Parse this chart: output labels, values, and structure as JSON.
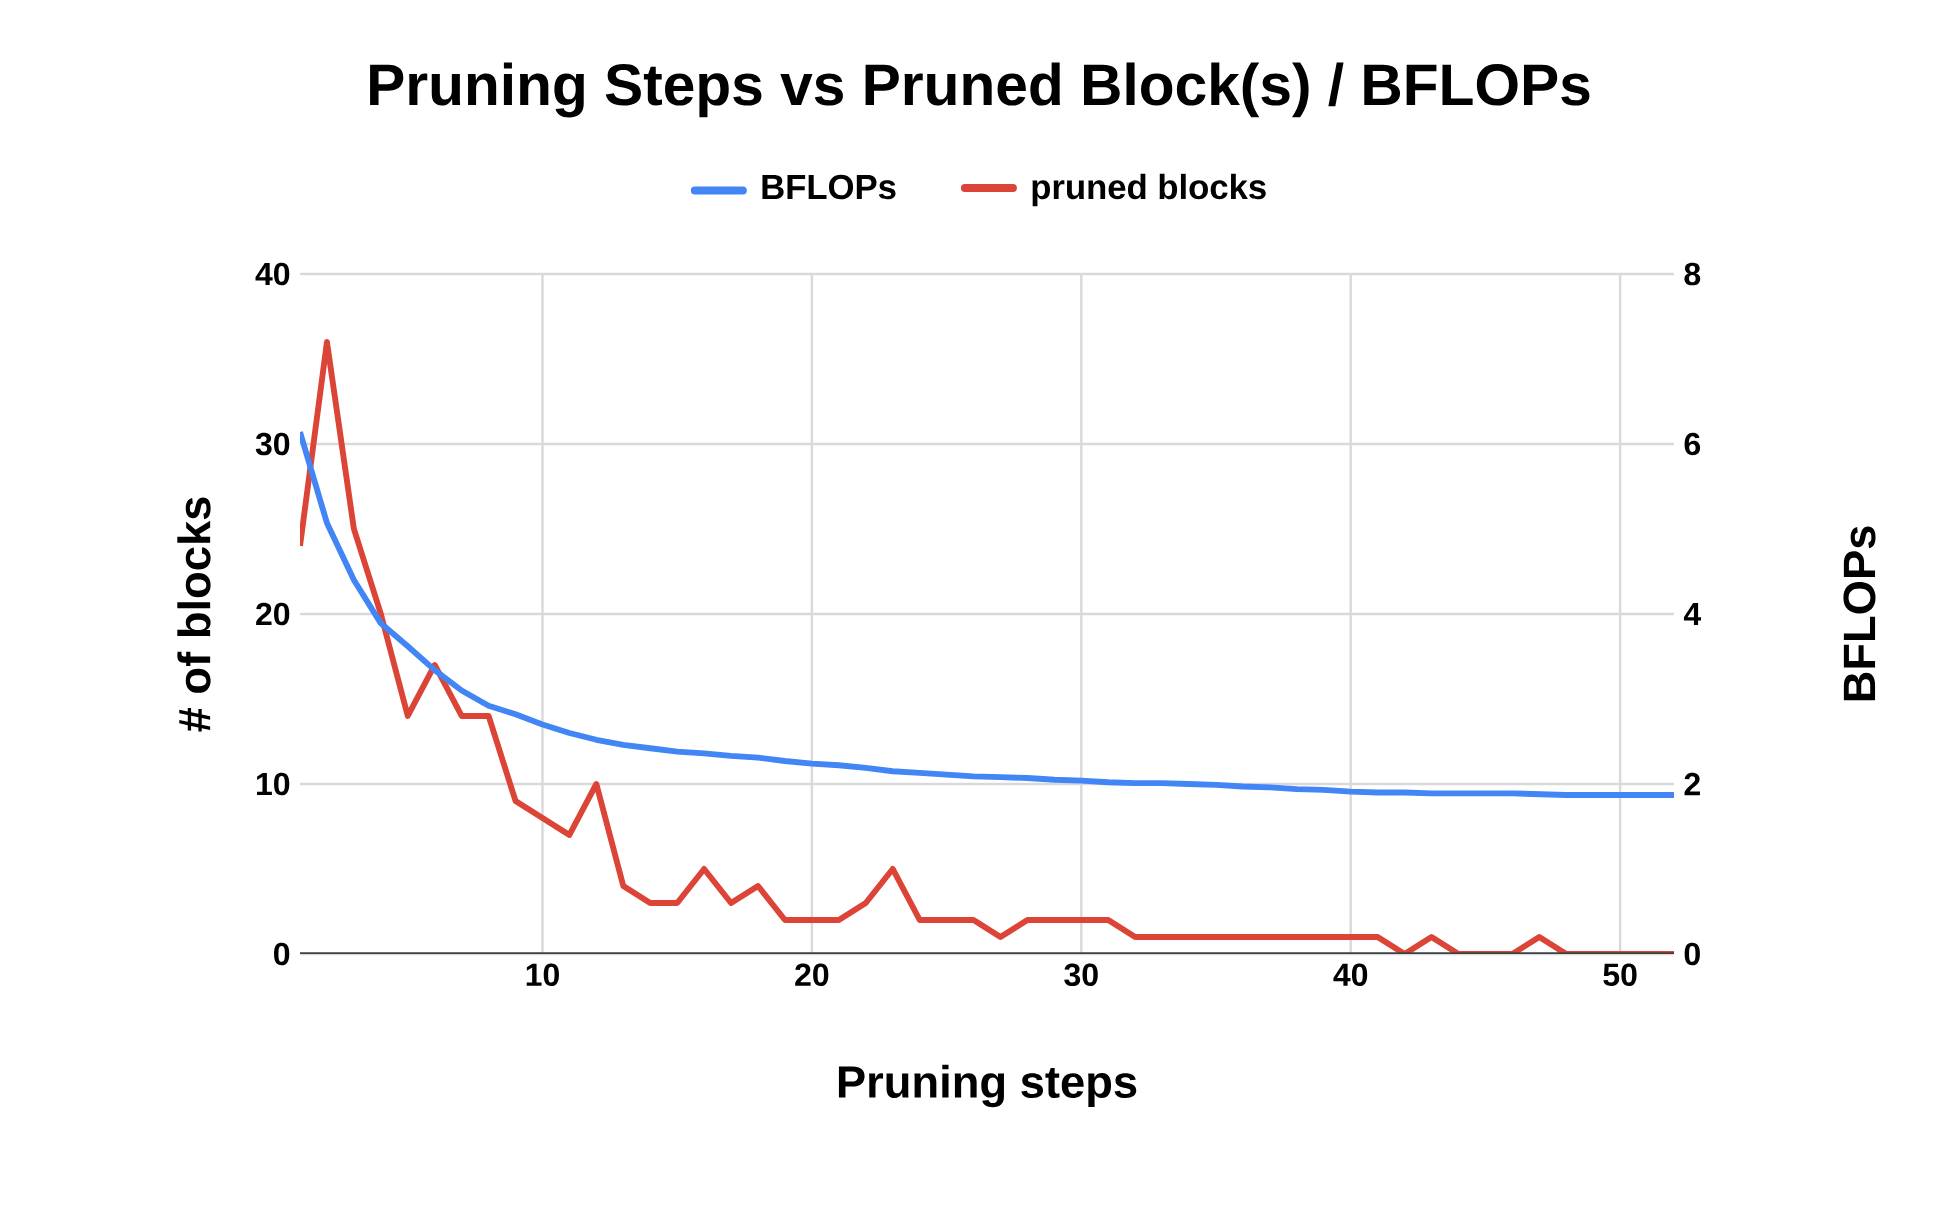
{
  "chart_data": {
    "type": "line",
    "title": "Pruning Steps vs Pruned Block(s) / BFLOPs",
    "xlabel": "Pruning steps",
    "ylabel": "# of blocks",
    "y2label": "BFLOPs",
    "x": [
      1,
      2,
      3,
      4,
      5,
      6,
      7,
      8,
      9,
      10,
      11,
      12,
      13,
      14,
      15,
      16,
      17,
      18,
      19,
      20,
      21,
      22,
      23,
      24,
      25,
      26,
      27,
      28,
      29,
      30,
      31,
      32,
      33,
      34,
      35,
      36,
      37,
      38,
      39,
      40,
      41,
      42,
      43,
      44,
      45,
      46,
      47,
      48,
      49,
      50,
      51,
      52
    ],
    "series": [
      {
        "name": "BFLOPs",
        "color": "#4285f4",
        "axis": "y2",
        "values": [
          6.14,
          5.07,
          4.4,
          3.89,
          3.62,
          3.34,
          3.1,
          2.92,
          2.82,
          2.7,
          2.6,
          2.52,
          2.46,
          2.42,
          2.38,
          2.36,
          2.33,
          2.31,
          2.27,
          2.24,
          2.22,
          2.19,
          2.15,
          2.13,
          2.11,
          2.09,
          2.08,
          2.07,
          2.05,
          2.04,
          2.02,
          2.01,
          2.01,
          2.0,
          1.99,
          1.97,
          1.96,
          1.94,
          1.93,
          1.91,
          1.9,
          1.9,
          1.89,
          1.89,
          1.89,
          1.89,
          1.88,
          1.87,
          1.87,
          1.87,
          1.87,
          1.87
        ]
      },
      {
        "name": "pruned blocks",
        "color": "#db4437",
        "values": [
          24,
          36,
          25,
          20,
          14,
          17,
          14,
          14,
          9,
          8,
          7,
          10,
          4,
          3,
          3,
          5,
          3,
          4,
          2,
          2,
          2,
          3,
          5,
          2,
          2,
          2,
          1,
          2,
          2,
          2,
          2,
          1,
          1,
          1,
          1,
          1,
          1,
          1,
          1,
          1,
          1,
          0,
          1,
          0,
          0,
          0,
          1,
          0,
          0,
          0,
          0,
          0
        ]
      }
    ],
    "xlim": [
      1,
      52
    ],
    "xticks": [
      10,
      20,
      30,
      40,
      50
    ],
    "ylim": [
      0,
      40
    ],
    "yticks": [
      0,
      10,
      20,
      30,
      40
    ],
    "y2lim": [
      0,
      8
    ],
    "y2ticks": [
      0,
      2,
      4,
      6,
      8
    ],
    "grid": true,
    "legend": "top",
    "marker": "none",
    "line_style": "solid"
  }
}
